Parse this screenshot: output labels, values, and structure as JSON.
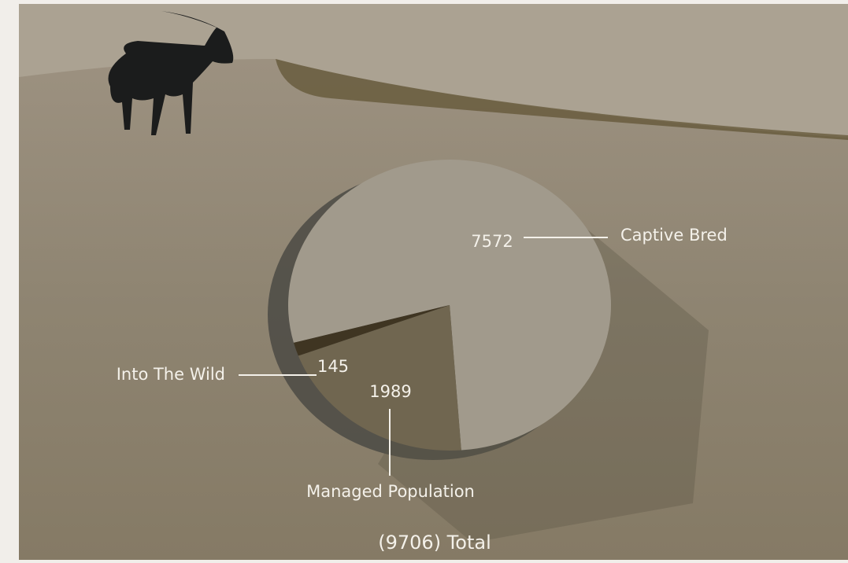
{
  "chart_data": {
    "type": "pie",
    "categories": [
      "Captive Bred",
      "Managed Population",
      "Into The Wild"
    ],
    "values": [
      7572,
      1989,
      145
    ],
    "colors": [
      "#a19a8c",
      "#706650",
      "#3f3522"
    ],
    "total_label": "(9706) Total"
  }
}
